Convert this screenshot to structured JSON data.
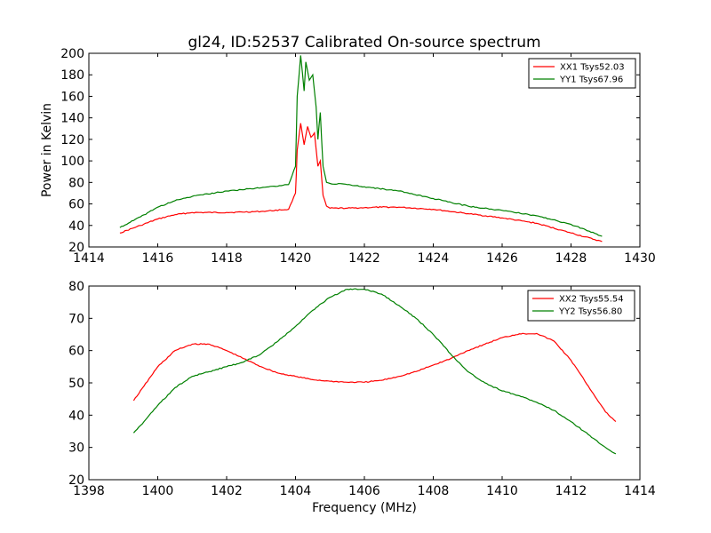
{
  "figure": {
    "title": "gl24, ID:52537 Calibrated On-source spectrum"
  },
  "chart_data": [
    {
      "type": "line",
      "title": "gl24, ID:52537 Calibrated On-source spectrum",
      "xlabel": "",
      "ylabel": "Power in Kelvin",
      "xlim": [
        1414,
        1430
      ],
      "ylim": [
        20,
        200
      ],
      "xticks": [
        1414,
        1416,
        1418,
        1420,
        1422,
        1424,
        1426,
        1428,
        1430
      ],
      "yticks": [
        20,
        40,
        60,
        80,
        100,
        120,
        140,
        160,
        180,
        200
      ],
      "grid": false,
      "legend_position": "top-right",
      "series": [
        {
          "name": "XX1 Tsys52.03",
          "color": "#ff0000",
          "x": [
            1414.9,
            1415.5,
            1416.0,
            1416.5,
            1417.0,
            1418.0,
            1419.0,
            1419.8,
            1420.0,
            1420.05,
            1420.15,
            1420.25,
            1420.35,
            1420.45,
            1420.55,
            1420.65,
            1420.72,
            1420.8,
            1420.9,
            1421.0,
            1421.5,
            1422.0,
            1422.5,
            1423.0,
            1424.0,
            1425.0,
            1426.0,
            1427.0,
            1428.0,
            1428.9
          ],
          "y": [
            33,
            40,
            46,
            50,
            52,
            52,
            53,
            55,
            70,
            110,
            135,
            115,
            132,
            122,
            126,
            95,
            100,
            68,
            58,
            56,
            56,
            56.5,
            57,
            57,
            55,
            51,
            47,
            42,
            33,
            25
          ]
        },
        {
          "name": "YY1 Tsys67.96",
          "color": "#008000",
          "x": [
            1414.9,
            1415.5,
            1416.0,
            1416.5,
            1417.0,
            1418.0,
            1419.0,
            1419.8,
            1420.0,
            1420.05,
            1420.15,
            1420.25,
            1420.3,
            1420.4,
            1420.5,
            1420.6,
            1420.65,
            1420.72,
            1420.8,
            1420.9,
            1421.0,
            1421.5,
            1422.0,
            1423.0,
            1424.0,
            1425.0,
            1426.0,
            1427.0,
            1428.0,
            1428.9
          ],
          "y": [
            38,
            48,
            57,
            63,
            67,
            72,
            75,
            78,
            95,
            160,
            198,
            165,
            192,
            175,
            180,
            150,
            120,
            145,
            95,
            80,
            79,
            78,
            76,
            72,
            65,
            58,
            54,
            49,
            41,
            30
          ]
        }
      ]
    },
    {
      "type": "line",
      "title": "",
      "xlabel": "Frequency (MHz)",
      "ylabel": "",
      "xlim": [
        1398,
        1414
      ],
      "ylim": [
        20,
        80
      ],
      "xticks": [
        1398,
        1400,
        1402,
        1404,
        1406,
        1408,
        1410,
        1412,
        1414
      ],
      "yticks": [
        20,
        30,
        40,
        50,
        60,
        70,
        80
      ],
      "grid": false,
      "legend_position": "top-right",
      "series": [
        {
          "name": "XX2 Tsys55.54",
          "color": "#ff0000",
          "x": [
            1399.3,
            1399.6,
            1400.0,
            1400.5,
            1401.0,
            1401.5,
            1402.0,
            1402.5,
            1403.0,
            1403.5,
            1404.0,
            1404.5,
            1405.0,
            1405.5,
            1406.0,
            1406.5,
            1407.0,
            1407.5,
            1408.0,
            1408.5,
            1409.0,
            1409.5,
            1410.0,
            1410.5,
            1411.0,
            1411.5,
            1412.0,
            1412.5,
            1413.0,
            1413.3
          ],
          "y": [
            44.5,
            49,
            55,
            60,
            62,
            62,
            60,
            57.5,
            55,
            53,
            52,
            51,
            50.5,
            50.2,
            50.2,
            50.8,
            52,
            53.5,
            55.5,
            57.5,
            60,
            62,
            64,
            65.2,
            65.3,
            63,
            57,
            49,
            41,
            38
          ]
        },
        {
          "name": "YY2 Tsys56.80",
          "color": "#008000",
          "x": [
            1399.3,
            1399.6,
            1400.0,
            1400.5,
            1401.0,
            1401.5,
            1402.0,
            1402.5,
            1403.0,
            1403.5,
            1404.0,
            1404.5,
            1405.0,
            1405.5,
            1406.0,
            1406.5,
            1407.0,
            1407.5,
            1408.0,
            1408.5,
            1409.0,
            1409.5,
            1410.0,
            1410.5,
            1411.0,
            1411.5,
            1412.0,
            1412.5,
            1413.0,
            1413.3
          ],
          "y": [
            34.5,
            38,
            43,
            48.5,
            52,
            53.5,
            55,
            56.5,
            59,
            63,
            67.5,
            72.5,
            76.5,
            79,
            79,
            77.5,
            74,
            70,
            65,
            59,
            53.5,
            50,
            47.5,
            46,
            44,
            41.5,
            38,
            34,
            30,
            28
          ]
        }
      ]
    }
  ]
}
